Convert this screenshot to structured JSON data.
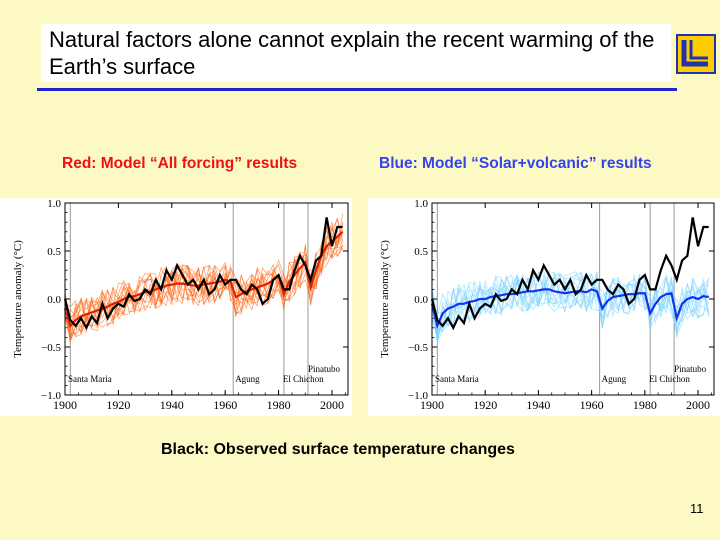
{
  "title": "Natural factors alone cannot explain the recent warming of the Earth’s surface",
  "legend_red": "Red: Model “All forcing” results",
  "legend_blue": "Blue: Model “Solar+volcanic” results",
  "observed_note": "Black: Observed surface temperature changes",
  "page_number": "11",
  "colors": {
    "background": "#fdf9c4",
    "title_rule": "#2222cc",
    "all_forcing_ensemble": "#ff6a1a",
    "all_forcing_mean": "#dd2200",
    "solar_volcanic_ensemble": "#7fd4ff",
    "solar_volcanic_mean": "#1133ee",
    "observed": "#000000"
  },
  "chart_data": [
    {
      "type": "line",
      "name": "all-forcing",
      "ylabel": "Temperature anomaly (°C)",
      "xlim": [
        1900,
        2006
      ],
      "ylim": [
        -1.0,
        1.0
      ],
      "xticks": [
        1900,
        1920,
        1940,
        1960,
        1980,
        2000
      ],
      "yticks": [
        -1.0,
        -0.5,
        0.0,
        0.5,
        1.0
      ],
      "ytick_labels": [
        "−1.0",
        "−0.5",
        "0.0",
        "0.5",
        "1.0"
      ],
      "eruptions": [
        {
          "name": "Santa Maria",
          "year": 1902
        },
        {
          "name": "Agung",
          "year": 1963
        },
        {
          "name": "El Chichon",
          "year": 1982
        },
        {
          "name": "Pinatubo",
          "year": 1991
        }
      ],
      "x": [
        1900,
        1902,
        1904,
        1906,
        1908,
        1910,
        1912,
        1914,
        1916,
        1918,
        1920,
        1922,
        1924,
        1926,
        1928,
        1930,
        1932,
        1934,
        1936,
        1938,
        1940,
        1942,
        1944,
        1946,
        1948,
        1950,
        1952,
        1954,
        1956,
        1958,
        1960,
        1962,
        1964,
        1966,
        1968,
        1970,
        1972,
        1974,
        1976,
        1978,
        1980,
        1982,
        1984,
        1986,
        1988,
        1990,
        1992,
        1994,
        1996,
        1998,
        2000,
        2002,
        2004
      ],
      "series": [
        {
          "name": "Observed",
          "color": "#000000",
          "values": [
            0.0,
            -0.22,
            -0.28,
            -0.2,
            -0.3,
            -0.18,
            -0.25,
            -0.05,
            -0.2,
            -0.1,
            -0.05,
            -0.08,
            0.05,
            -0.02,
            0.0,
            0.1,
            0.05,
            0.2,
            0.1,
            0.3,
            0.2,
            0.35,
            0.25,
            0.15,
            0.2,
            0.1,
            0.2,
            0.05,
            0.1,
            0.25,
            0.15,
            0.2,
            0.2,
            0.1,
            0.05,
            0.15,
            0.1,
            -0.05,
            0.0,
            0.2,
            0.25,
            0.1,
            0.1,
            0.3,
            0.45,
            0.35,
            0.2,
            0.4,
            0.45,
            0.85,
            0.55,
            0.75,
            0.75
          ]
        },
        {
          "name": "All forcing ensemble mean",
          "color": "#dd2200",
          "values": [
            -0.1,
            -0.28,
            -0.22,
            -0.18,
            -0.16,
            -0.14,
            -0.12,
            -0.1,
            -0.08,
            -0.05,
            -0.03,
            0.0,
            0.02,
            0.03,
            0.05,
            0.07,
            0.08,
            0.1,
            0.12,
            0.14,
            0.15,
            0.16,
            0.16,
            0.15,
            0.14,
            0.14,
            0.15,
            0.16,
            0.17,
            0.18,
            0.2,
            0.18,
            0.02,
            0.05,
            0.08,
            0.1,
            0.12,
            0.14,
            0.16,
            0.2,
            0.24,
            0.05,
            0.18,
            0.25,
            0.32,
            0.38,
            0.12,
            0.3,
            0.45,
            0.55,
            0.6,
            0.65,
            0.7
          ]
        }
      ]
    },
    {
      "type": "line",
      "name": "solar-volcanic",
      "ylabel": "Temperature anomaly (°C)",
      "xlim": [
        1900,
        2006
      ],
      "ylim": [
        -1.0,
        1.0
      ],
      "xticks": [
        1900,
        1920,
        1940,
        1960,
        1980,
        2000
      ],
      "yticks": [
        -1.0,
        -0.5,
        0.0,
        0.5,
        1.0
      ],
      "ytick_labels": [
        "−1.0",
        "−0.5",
        "0.0",
        "0.5",
        "1.0"
      ],
      "eruptions": [
        {
          "name": "Santa Maria",
          "year": 1902
        },
        {
          "name": "Agung",
          "year": 1963
        },
        {
          "name": "El Chichon",
          "year": 1982
        },
        {
          "name": "Pinatubo",
          "year": 1991
        }
      ],
      "x": [
        1900,
        1902,
        1904,
        1906,
        1908,
        1910,
        1912,
        1914,
        1916,
        1918,
        1920,
        1922,
        1924,
        1926,
        1928,
        1930,
        1932,
        1934,
        1936,
        1938,
        1940,
        1942,
        1944,
        1946,
        1948,
        1950,
        1952,
        1954,
        1956,
        1958,
        1960,
        1962,
        1964,
        1966,
        1968,
        1970,
        1972,
        1974,
        1976,
        1978,
        1980,
        1982,
        1984,
        1986,
        1988,
        1990,
        1992,
        1994,
        1996,
        1998,
        2000,
        2002,
        2004
      ],
      "series": [
        {
          "name": "Observed",
          "color": "#000000",
          "values": [
            0.0,
            -0.22,
            -0.28,
            -0.2,
            -0.3,
            -0.18,
            -0.25,
            -0.05,
            -0.2,
            -0.1,
            -0.05,
            -0.08,
            0.05,
            -0.02,
            0.0,
            0.1,
            0.05,
            0.2,
            0.1,
            0.3,
            0.2,
            0.35,
            0.25,
            0.15,
            0.2,
            0.1,
            0.2,
            0.05,
            0.1,
            0.25,
            0.15,
            0.2,
            0.2,
            0.1,
            0.05,
            0.15,
            0.1,
            -0.05,
            0.0,
            0.2,
            0.25,
            0.1,
            0.1,
            0.3,
            0.45,
            0.35,
            0.2,
            0.4,
            0.45,
            0.85,
            0.55,
            0.75,
            0.75
          ]
        },
        {
          "name": "Solar+volcanic ensemble mean",
          "color": "#1133ee",
          "values": [
            -0.05,
            -0.28,
            -0.15,
            -0.1,
            -0.08,
            -0.05,
            -0.05,
            -0.03,
            -0.02,
            0.0,
            0.0,
            0.02,
            0.03,
            0.04,
            0.05,
            0.05,
            0.06,
            0.07,
            0.08,
            0.08,
            0.09,
            0.1,
            0.1,
            0.08,
            0.07,
            0.06,
            0.07,
            0.08,
            0.08,
            0.07,
            0.1,
            0.08,
            -0.1,
            -0.02,
            0.02,
            0.03,
            0.04,
            0.05,
            0.05,
            0.06,
            0.06,
            -0.15,
            -0.05,
            0.02,
            0.05,
            0.06,
            -0.2,
            -0.05,
            0.0,
            0.02,
            0.0,
            0.03,
            0.02
          ]
        }
      ]
    }
  ]
}
